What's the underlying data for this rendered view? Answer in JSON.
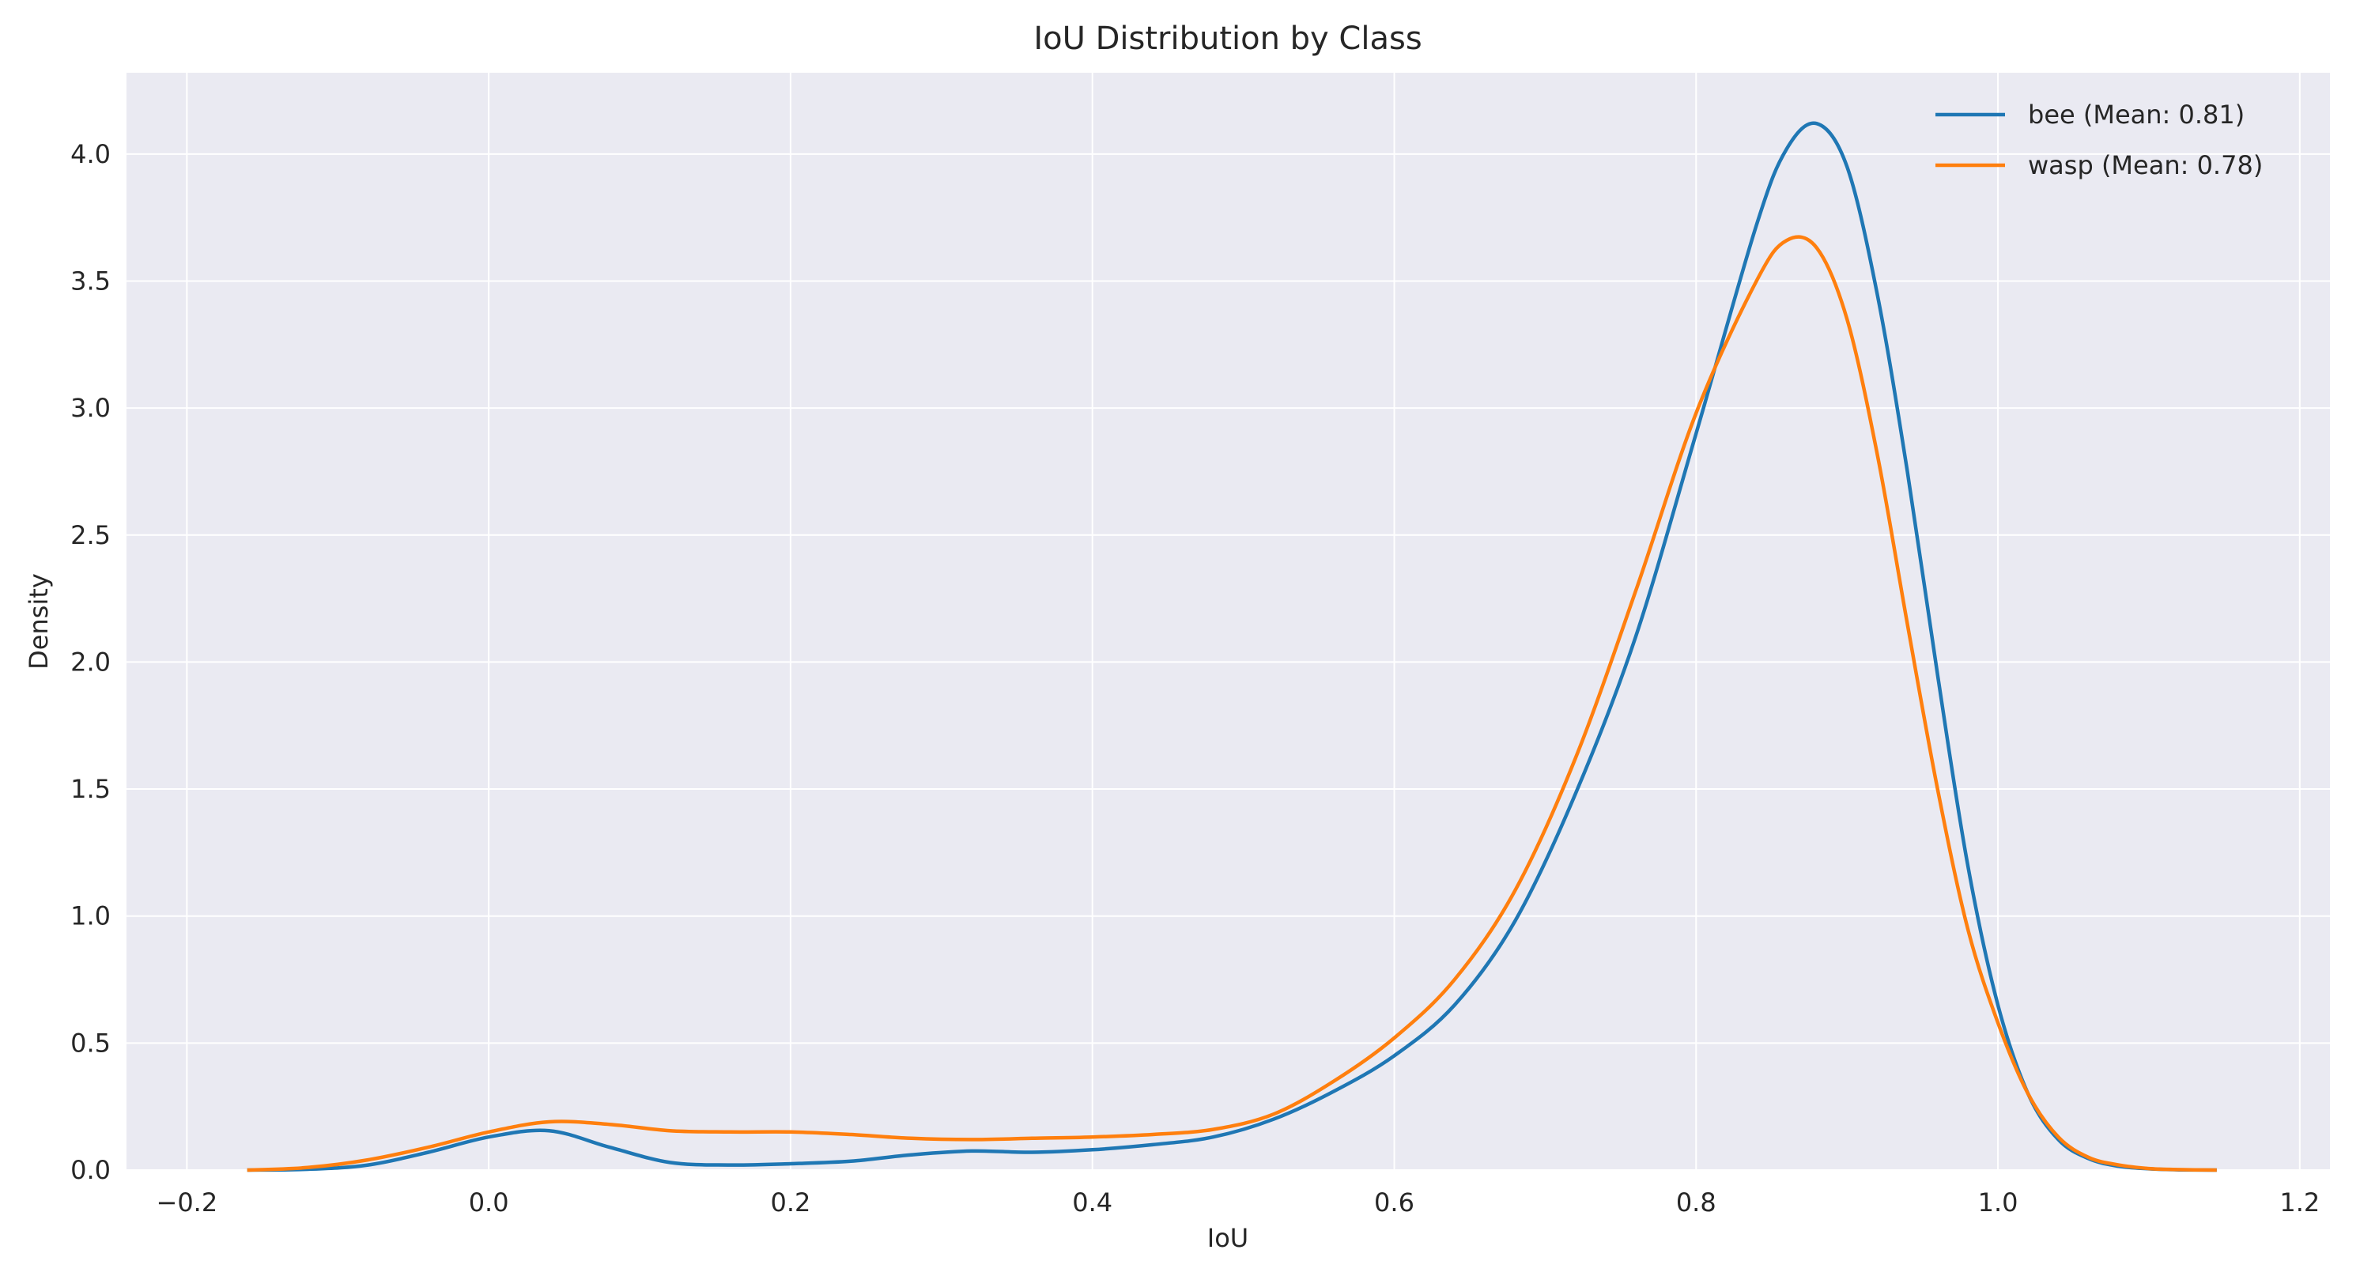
{
  "chart_data": {
    "type": "line",
    "title": "IoU Distribution by Class",
    "xlabel": "IoU",
    "ylabel": "Density",
    "xlim": [
      -0.24,
      1.22
    ],
    "ylim": [
      0,
      4.32
    ],
    "x_ticks": [
      -0.2,
      0.0,
      0.2,
      0.4,
      0.6,
      0.8,
      1.0,
      1.2
    ],
    "x_tick_labels": [
      "−0.2",
      "0.0",
      "0.2",
      "0.4",
      "0.6",
      "0.8",
      "1.0",
      "1.2"
    ],
    "y_ticks": [
      0.0,
      0.5,
      1.0,
      1.5,
      2.0,
      2.5,
      3.0,
      3.5,
      4.0
    ],
    "y_tick_labels": [
      "0.0",
      "0.5",
      "1.0",
      "1.5",
      "2.0",
      "2.5",
      "3.0",
      "3.5",
      "4.0"
    ],
    "grid": true,
    "legend_position": "top-right",
    "background_color": "#eaeaf2",
    "grid_color": "#ffffff",
    "series": [
      {
        "name": "bee (Mean: 0.81)",
        "color": "#1f77b4",
        "x": [
          -0.16,
          -0.12,
          -0.08,
          -0.04,
          0.0,
          0.04,
          0.08,
          0.12,
          0.16,
          0.2,
          0.24,
          0.28,
          0.32,
          0.36,
          0.4,
          0.44,
          0.48,
          0.52,
          0.56,
          0.6,
          0.64,
          0.68,
          0.72,
          0.76,
          0.8,
          0.84,
          0.86,
          0.88,
          0.9,
          0.92,
          0.94,
          0.96,
          0.98,
          1.0,
          1.02,
          1.04,
          1.06,
          1.08,
          1.1,
          1.12,
          1.145
        ],
        "y": [
          0.0,
          0.003,
          0.02,
          0.07,
          0.13,
          0.155,
          0.09,
          0.03,
          0.02,
          0.025,
          0.035,
          0.06,
          0.075,
          0.07,
          0.08,
          0.1,
          0.13,
          0.2,
          0.31,
          0.45,
          0.65,
          0.98,
          1.48,
          2.1,
          2.9,
          3.72,
          4.02,
          4.12,
          3.95,
          3.45,
          2.75,
          1.95,
          1.2,
          0.65,
          0.3,
          0.12,
          0.045,
          0.015,
          0.005,
          0.001,
          0.0
        ]
      },
      {
        "name": "wasp (Mean: 0.78)",
        "color": "#ff7f0e",
        "x": [
          -0.16,
          -0.12,
          -0.08,
          -0.04,
          0.0,
          0.04,
          0.08,
          0.12,
          0.16,
          0.2,
          0.24,
          0.28,
          0.32,
          0.36,
          0.4,
          0.44,
          0.48,
          0.52,
          0.56,
          0.6,
          0.64,
          0.68,
          0.72,
          0.76,
          0.8,
          0.84,
          0.86,
          0.88,
          0.9,
          0.92,
          0.94,
          0.96,
          0.98,
          1.0,
          1.02,
          1.04,
          1.06,
          1.08,
          1.1,
          1.12,
          1.145
        ],
        "y": [
          0.0,
          0.01,
          0.04,
          0.09,
          0.15,
          0.19,
          0.18,
          0.155,
          0.15,
          0.15,
          0.14,
          0.125,
          0.12,
          0.125,
          0.13,
          0.14,
          0.16,
          0.22,
          0.35,
          0.52,
          0.75,
          1.1,
          1.62,
          2.28,
          2.98,
          3.5,
          3.66,
          3.63,
          3.35,
          2.82,
          2.15,
          1.5,
          0.95,
          0.58,
          0.3,
          0.13,
          0.05,
          0.02,
          0.006,
          0.002,
          0.0
        ]
      }
    ]
  }
}
